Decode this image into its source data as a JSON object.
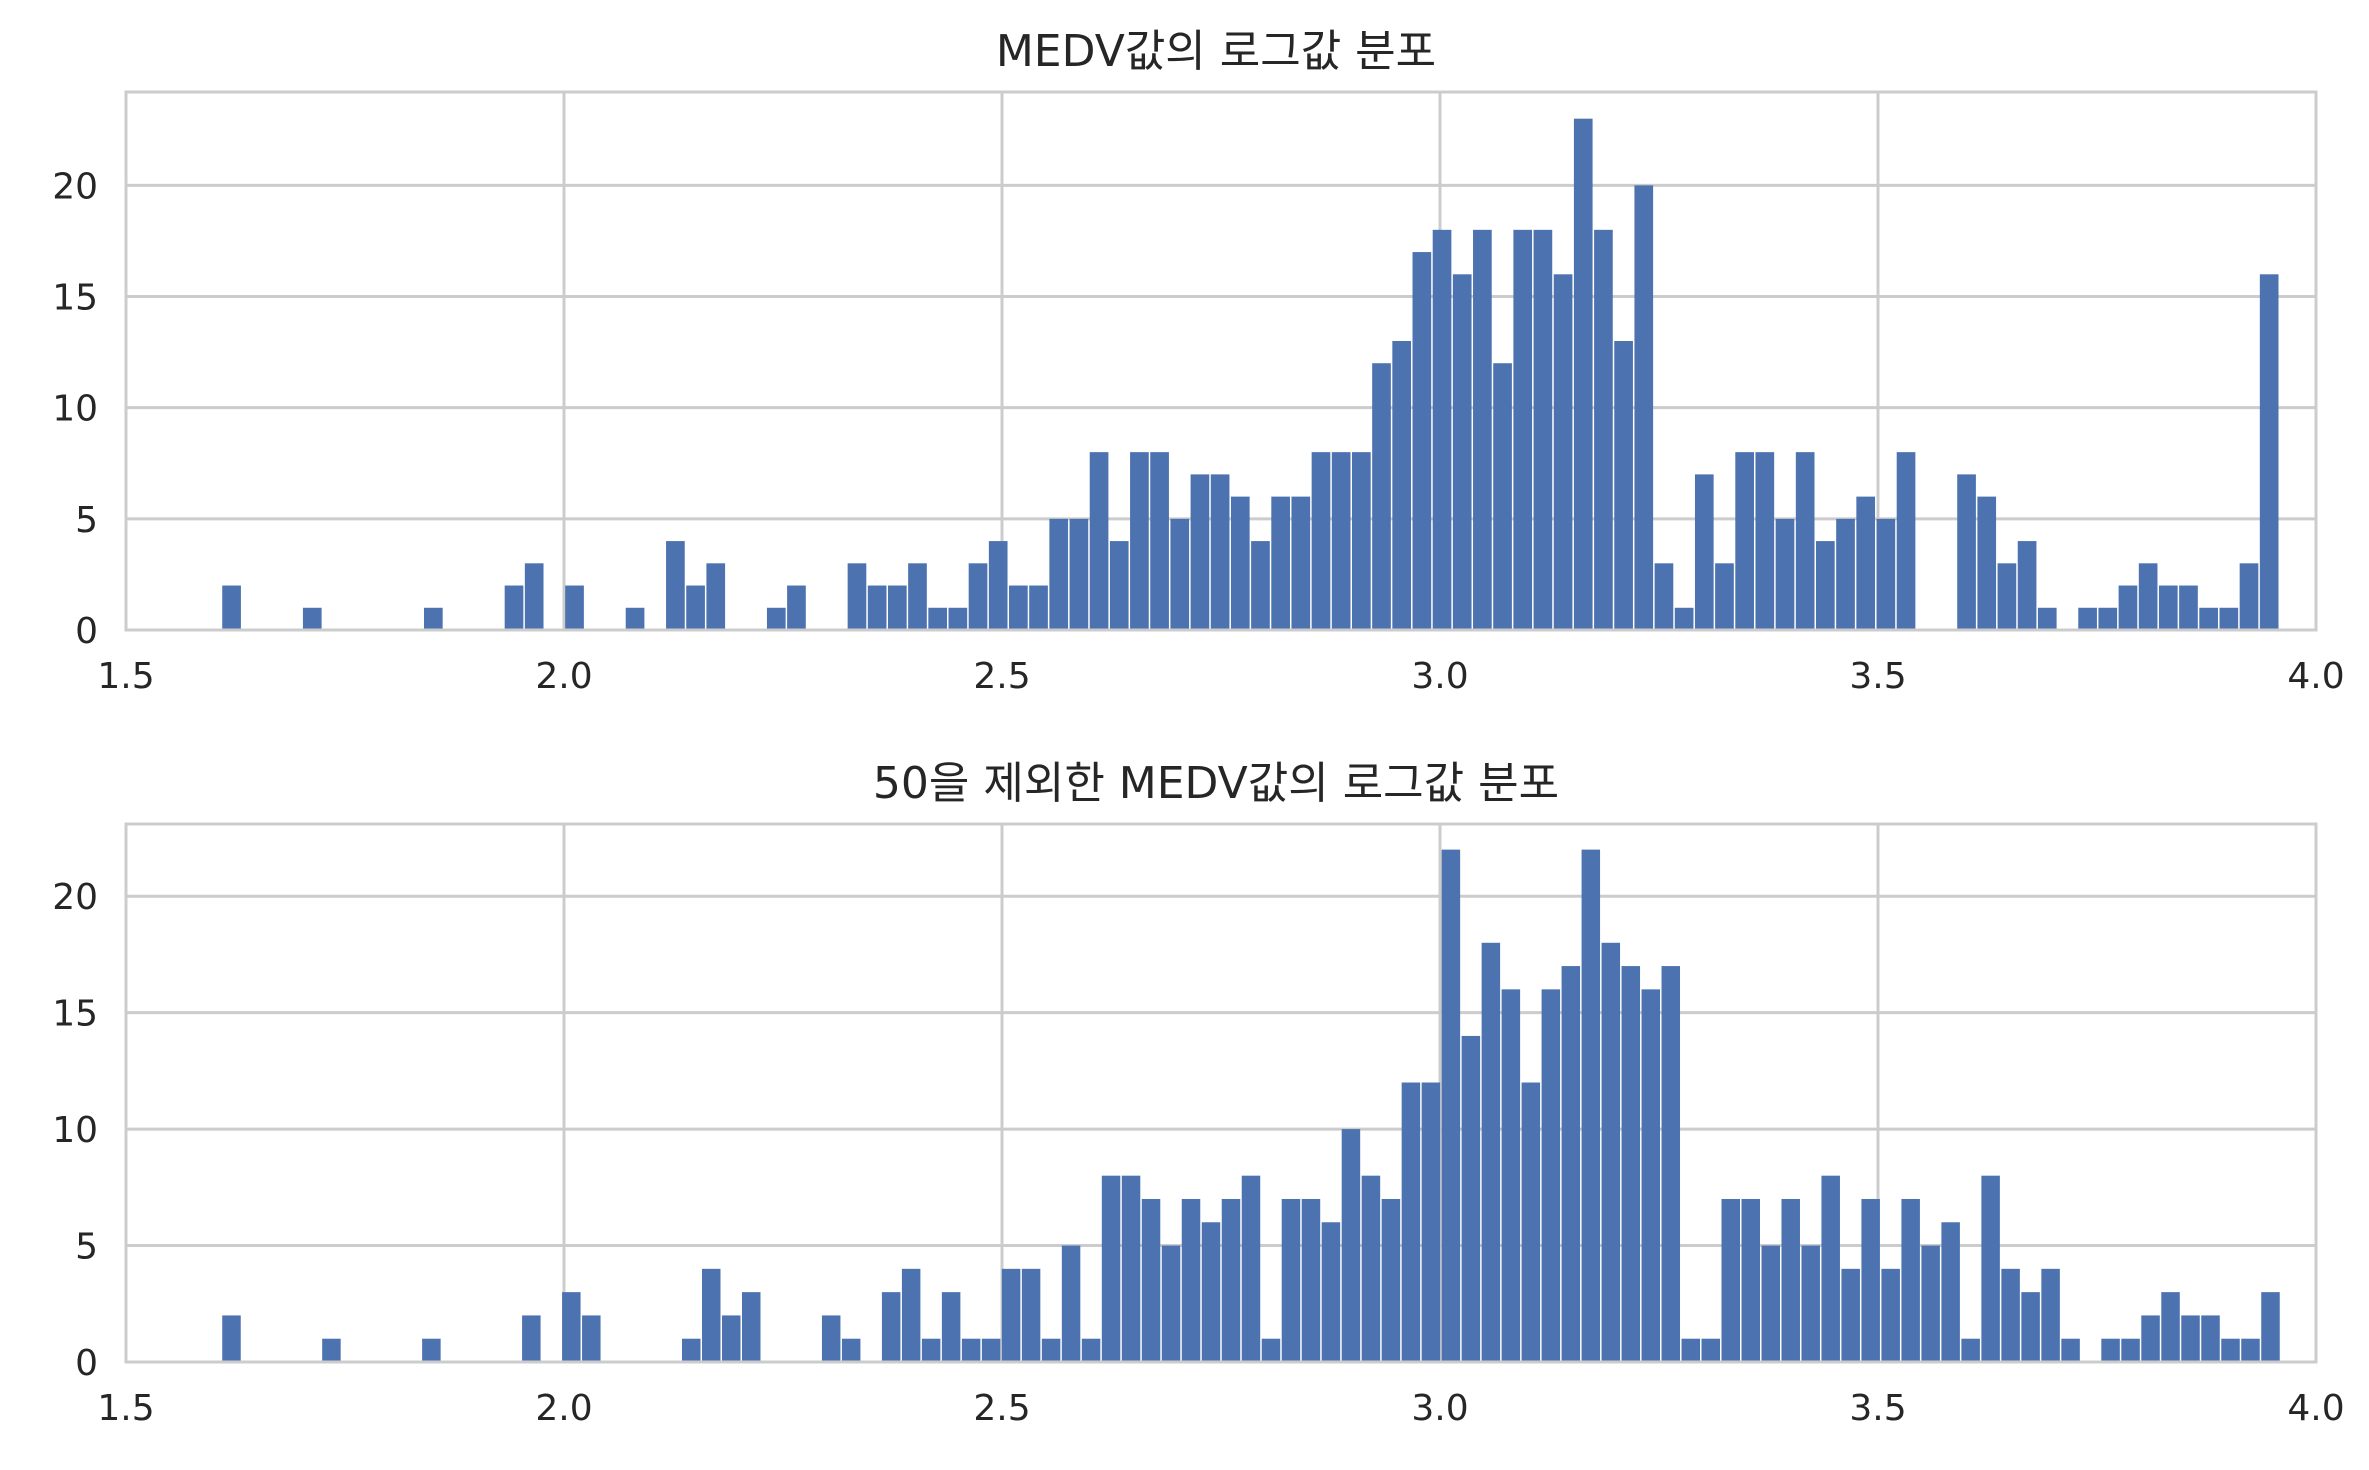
{
  "figure": {
    "background": "#ffffff",
    "bar_color": "#4c72b0",
    "grid_color": "#cccccc"
  },
  "chart_data": [
    {
      "type": "bar",
      "title": "MEDV값의 로그값 분포",
      "xlabel": "",
      "ylabel": "",
      "xlim": [
        1.5,
        4.0
      ],
      "ylim": [
        0,
        24.2
      ],
      "xticks": [
        "1.5",
        "2.0",
        "2.5",
        "3.0",
        "3.5",
        "4.0"
      ],
      "xtick_values": [
        1.5,
        2.0,
        2.5,
        3.0,
        3.5,
        4.0
      ],
      "yticks": [
        "0",
        "5",
        "10",
        "15",
        "20"
      ],
      "ytick_values": [
        0,
        5,
        10,
        15,
        20
      ],
      "grid": true,
      "bin_start": 1.609,
      "bin_width": 0.02303,
      "values": [
        2,
        0,
        0,
        0,
        1,
        0,
        0,
        0,
        0,
        0,
        1,
        0,
        0,
        0,
        2,
        3,
        0,
        2,
        0,
        0,
        1,
        0,
        4,
        2,
        3,
        0,
        0,
        1,
        2,
        0,
        0,
        3,
        2,
        2,
        3,
        1,
        1,
        3,
        4,
        2,
        2,
        5,
        5,
        8,
        4,
        8,
        8,
        5,
        7,
        7,
        6,
        4,
        6,
        6,
        8,
        8,
        8,
        12,
        13,
        17,
        18,
        16,
        18,
        12,
        18,
        18,
        16,
        23,
        18,
        13,
        20,
        3,
        1,
        7,
        3,
        8,
        8,
        5,
        8,
        4,
        5,
        6,
        5,
        8,
        0,
        0,
        7,
        6,
        3,
        4,
        1,
        0,
        1,
        1,
        2,
        3,
        2,
        2,
        1,
        1,
        3,
        16
      ]
    },
    {
      "type": "bar",
      "title": "50을 제외한 MEDV값의 로그값 분포",
      "xlabel": "",
      "ylabel": "",
      "xlim": [
        1.5,
        4.0
      ],
      "ylim": [
        0,
        23.1
      ],
      "xticks": [
        "1.5",
        "2.0",
        "2.5",
        "3.0",
        "3.5",
        "4.0"
      ],
      "xtick_values": [
        1.5,
        2.0,
        2.5,
        3.0,
        3.5,
        4.0
      ],
      "yticks": [
        "0",
        "5",
        "10",
        "15",
        "20"
      ],
      "ytick_values": [
        0,
        5,
        10,
        15,
        20
      ],
      "grid": true,
      "bin_start": 1.609,
      "bin_width": 0.02282,
      "values": [
        2,
        0,
        0,
        0,
        0,
        1,
        0,
        0,
        0,
        0,
        1,
        0,
        0,
        0,
        0,
        2,
        0,
        3,
        2,
        0,
        0,
        0,
        0,
        1,
        4,
        2,
        3,
        0,
        0,
        0,
        2,
        1,
        0,
        3,
        4,
        1,
        3,
        1,
        1,
        4,
        4,
        1,
        5,
        1,
        8,
        8,
        7,
        5,
        7,
        6,
        7,
        8,
        1,
        7,
        7,
        6,
        10,
        8,
        7,
        12,
        12,
        22,
        14,
        18,
        16,
        12,
        16,
        17,
        22,
        18,
        17,
        16,
        17,
        1,
        1,
        7,
        7,
        5,
        7,
        5,
        8,
        4,
        7,
        4,
        7,
        5,
        6,
        1,
        8,
        4,
        3,
        4,
        1,
        0,
        1,
        1,
        2,
        3,
        2,
        2,
        1,
        1,
        3
      ]
    }
  ]
}
